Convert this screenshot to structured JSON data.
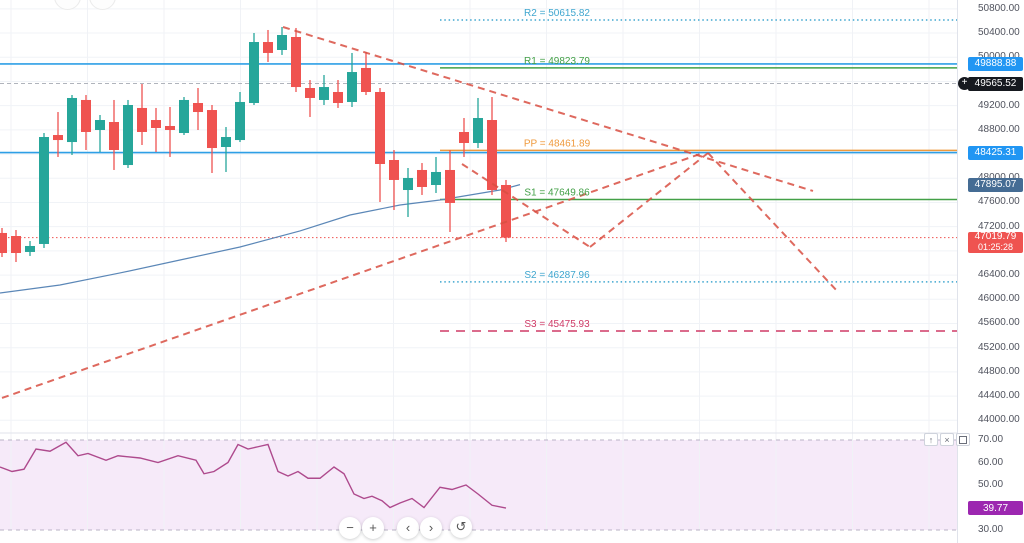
{
  "chart_data": {
    "type": "candlestick",
    "pane_split_y": 433,
    "price_axis": {
      "ylim": [
        44000,
        50800
      ],
      "grid_step": 400
    },
    "rsi_axis": {
      "ylim": [
        30,
        70
      ]
    },
    "up_color": "#26a69a",
    "down_color": "#ef5350",
    "candles": {
      "columns": [
        "x",
        "open",
        "high",
        "low",
        "close"
      ],
      "rows": [
        [
          2,
          47096,
          47178,
          46699,
          46765
        ],
        [
          16,
          47046,
          47145,
          46616,
          46765
        ],
        [
          30,
          46782,
          46963,
          46716,
          46881
        ],
        [
          44,
          46914,
          48748,
          46848,
          48682
        ],
        [
          58,
          48715,
          49095,
          48352,
          48632
        ],
        [
          72,
          48599,
          49376,
          48385,
          49327
        ],
        [
          86,
          49294,
          49376,
          48467,
          48765
        ],
        [
          100,
          48798,
          49046,
          48434,
          48963
        ],
        [
          114,
          48930,
          49294,
          48137,
          48467
        ],
        [
          128,
          48219,
          49294,
          48170,
          49211
        ],
        [
          142,
          49162,
          49558,
          48550,
          48765
        ],
        [
          156,
          48963,
          49162,
          48434,
          48831
        ],
        [
          170,
          48864,
          49178,
          48352,
          48798
        ],
        [
          184,
          48748,
          49343,
          48715,
          49294
        ],
        [
          198,
          49244,
          49492,
          48798,
          49095
        ],
        [
          212,
          49128,
          49211,
          48087,
          48500
        ],
        [
          226,
          48517,
          48847,
          48104,
          48682
        ],
        [
          240,
          48632,
          49426,
          48599,
          49261
        ],
        [
          254,
          49244,
          50401,
          49211,
          50252
        ],
        [
          268,
          50252,
          50451,
          49922,
          50071
        ],
        [
          282,
          50120,
          50500,
          50038,
          50368
        ],
        [
          296,
          50335,
          50484,
          49426,
          49508
        ],
        [
          310,
          49492,
          49624,
          49013,
          49327
        ],
        [
          324,
          49294,
          49707,
          49211,
          49508
        ],
        [
          338,
          49426,
          49624,
          49162,
          49244
        ],
        [
          352,
          49261,
          50071,
          49178,
          49756
        ],
        [
          366,
          49823,
          50087,
          49376,
          49426
        ],
        [
          380,
          49426,
          49492,
          47608,
          48236
        ],
        [
          394,
          48302,
          48467,
          47476,
          47972
        ],
        [
          408,
          47806,
          48170,
          47360,
          48005
        ],
        [
          422,
          48137,
          48252,
          47724,
          47856
        ],
        [
          436,
          47889,
          48352,
          47757,
          48104
        ],
        [
          450,
          48137,
          48467,
          47112,
          47592
        ],
        [
          464,
          48765,
          48996,
          48352,
          48583
        ],
        [
          478,
          48583,
          49327,
          48500,
          48996
        ],
        [
          492,
          48963,
          49343,
          47724,
          47806
        ],
        [
          506,
          47889,
          47972,
          46947,
          47019.79
        ]
      ]
    },
    "ma_line": {
      "color": "#5b87b7",
      "points": [
        [
          0,
          46104
        ],
        [
          60,
          46236
        ],
        [
          120,
          46435
        ],
        [
          180,
          46649
        ],
        [
          240,
          46864
        ],
        [
          300,
          47129
        ],
        [
          350,
          47393
        ],
        [
          400,
          47558
        ],
        [
          440,
          47641
        ],
        [
          470,
          47724
        ],
        [
          500,
          47806
        ],
        [
          520,
          47895.07
        ]
      ]
    },
    "pivot_levels": [
      {
        "name": "R2",
        "value": 50615.82,
        "label": "R2 = 50615.82",
        "color": "#3fa6cf",
        "style": "dotted"
      },
      {
        "name": "R1",
        "value": 49823.79,
        "label": "R1 = 49823.79",
        "color": "#43a047",
        "style": "solid"
      },
      {
        "name": "PP",
        "value": 48461.89,
        "label": "PP = 48461.89",
        "color": "#ef9a3d",
        "style": "solid"
      },
      {
        "name": "S1",
        "value": 47649.86,
        "label": "S1 = 47649.86",
        "color": "#43a047",
        "style": "solid"
      },
      {
        "name": "S2",
        "value": 46287.96,
        "label": "S2 = 46287.96",
        "color": "#3fa6cf",
        "style": "dotted"
      },
      {
        "name": "S3",
        "value": 45475.93,
        "label": "S3 = 45475.93",
        "color": "#cf3a66",
        "style": "dashed"
      }
    ],
    "price_lines": [
      {
        "price": 49888.88,
        "color": "#2e9fe6",
        "style": "solid"
      },
      {
        "price": 49565.52,
        "color": "#b0b4bc",
        "style": "dashed"
      },
      {
        "price": 48425.31,
        "color": "#2e9fe6",
        "style": "solid"
      },
      {
        "price": 47019.79,
        "color": "#ef5350",
        "style": "dotted"
      }
    ],
    "trend_lines": {
      "color": "#d94f43",
      "dash": "7 5",
      "lines": [
        {
          "name": "descending-trendline",
          "points": [
            [
              283,
              50500
            ],
            [
              813,
              47790
            ]
          ]
        },
        {
          "name": "ascending-trendline",
          "points": [
            [
              2,
              44369
            ],
            [
              703,
              48418
            ]
          ]
        },
        {
          "name": "projection-down-1",
          "points": [
            [
              462,
              48236
            ],
            [
              590,
              46864
            ]
          ]
        },
        {
          "name": "projection-up",
          "points": [
            [
              590,
              46864
            ],
            [
              708,
              48418
            ]
          ]
        },
        {
          "name": "projection-down-2",
          "points": [
            [
              708,
              48418
            ],
            [
              839,
              46104
            ]
          ]
        }
      ]
    },
    "rsi": {
      "color": "#ae4a8d",
      "band": [
        30,
        70
      ],
      "band_fill": "#efd9f4",
      "last_value": 39.77,
      "points": [
        [
          0,
          58
        ],
        [
          12,
          56
        ],
        [
          24,
          57
        ],
        [
          36,
          66
        ],
        [
          50,
          65
        ],
        [
          66,
          69
        ],
        [
          78,
          63
        ],
        [
          88,
          64
        ],
        [
          106,
          61
        ],
        [
          118,
          63
        ],
        [
          140,
          62
        ],
        [
          158,
          60
        ],
        [
          178,
          63
        ],
        [
          196,
          61
        ],
        [
          204,
          55
        ],
        [
          214,
          56
        ],
        [
          228,
          60
        ],
        [
          238,
          68
        ],
        [
          248,
          66
        ],
        [
          258,
          67
        ],
        [
          268,
          68
        ],
        [
          278,
          56
        ],
        [
          288,
          54
        ],
        [
          298,
          56
        ],
        [
          308,
          53
        ],
        [
          320,
          53
        ],
        [
          334,
          58
        ],
        [
          344,
          55
        ],
        [
          354,
          46
        ],
        [
          364,
          44
        ],
        [
          372,
          45
        ],
        [
          382,
          43
        ],
        [
          390,
          40
        ],
        [
          400,
          42
        ],
        [
          412,
          44
        ],
        [
          424,
          40
        ],
        [
          440,
          49
        ],
        [
          452,
          48
        ],
        [
          466,
          50
        ],
        [
          478,
          46
        ],
        [
          492,
          41
        ],
        [
          506,
          39.77
        ]
      ]
    }
  },
  "axis": {
    "price_ticks": [
      {
        "label": "50800.00",
        "price": 50800
      },
      {
        "label": "50400.00",
        "price": 50400
      },
      {
        "label": "50000.00",
        "price": 50000
      },
      {
        "label": "49200.00",
        "price": 49200
      },
      {
        "label": "48800.00",
        "price": 48800
      },
      {
        "label": "48000.00",
        "price": 48000
      },
      {
        "label": "47600.00",
        "price": 47600
      },
      {
        "label": "47200.00",
        "price": 47200
      },
      {
        "label": "46400.00",
        "price": 46400
      },
      {
        "label": "46000.00",
        "price": 46000
      },
      {
        "label": "45600.00",
        "price": 45600
      },
      {
        "label": "45200.00",
        "price": 45200
      },
      {
        "label": "44800.00",
        "price": 44800
      },
      {
        "label": "44400.00",
        "price": 44400
      },
      {
        "label": "44000.00",
        "price": 44000
      }
    ],
    "rsi_ticks": [
      {
        "label": "70.00",
        "value": 70
      },
      {
        "label": "60.00",
        "value": 60
      },
      {
        "label": "50.00",
        "value": 50
      },
      {
        "label": "30.00",
        "value": 30
      }
    ],
    "special_labels": [
      {
        "text": "49888.88",
        "bg": "#2196f3",
        "price": 49888.88,
        "name": "price-line-label-49888"
      },
      {
        "text": "49565.52",
        "bg": "#16191f",
        "price": 49565.52,
        "name": "last-close-label"
      },
      {
        "text": "48425.31",
        "bg": "#2196f3",
        "price": 48425.31,
        "name": "price-line-label-48425"
      },
      {
        "text": "47895.07",
        "bg": "#456c94",
        "price": 47895.07,
        "name": "ma-value-label"
      },
      {
        "text": "47019.79",
        "sub": "01:25:28",
        "bg": "#ef5350",
        "price": 47019.79,
        "name": "current-price-label"
      },
      {
        "text": "39.77",
        "bg": "#9c27b0",
        "rsi": 39.77,
        "name": "rsi-value-label"
      }
    ],
    "plus_button": "+"
  },
  "rsi_controls": {
    "move_up": "↑",
    "close": "×"
  },
  "toolbar": {
    "zoom_out": "−",
    "zoom_in": "+",
    "scroll_left": "‹",
    "scroll_right": "›",
    "reset": "↺"
  }
}
